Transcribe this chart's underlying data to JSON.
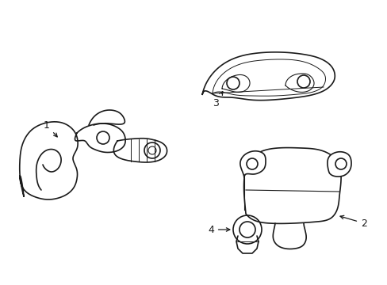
{
  "bg_color": "#ffffff",
  "line_color": "#1a1a1a",
  "line_width": 1.2,
  "figsize": [
    4.89,
    3.6
  ],
  "dpi": 100
}
